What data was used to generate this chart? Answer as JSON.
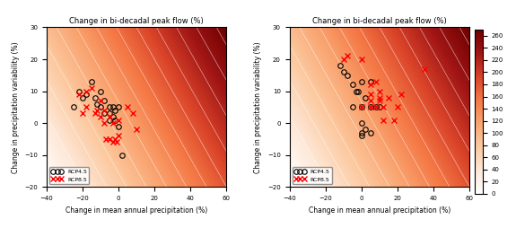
{
  "title": "Change in bi-decadal peak flow (%)",
  "xlabel": "Change in mean annual precipitation (%)",
  "ylabel": "Change in precipitation variability (%)",
  "xlim": [
    -40,
    60
  ],
  "ylim": [
    -20,
    30
  ],
  "xticks": [
    -40,
    -20,
    0,
    20,
    40,
    60
  ],
  "yticks": [
    -20,
    -10,
    0,
    10,
    20,
    30
  ],
  "colorbar_ticks": [
    0,
    20,
    40,
    60,
    80,
    100,
    120,
    140,
    160,
    180,
    200,
    220,
    240,
    260
  ],
  "panel1_rcp45": [
    [
      -22,
      10
    ],
    [
      -20,
      8
    ],
    [
      -18,
      9
    ],
    [
      -15,
      13
    ],
    [
      -13,
      8
    ],
    [
      -12,
      6
    ],
    [
      -10,
      10
    ],
    [
      -10,
      5
    ],
    [
      -8,
      7
    ],
    [
      -8,
      3
    ],
    [
      -5,
      5
    ],
    [
      -5,
      3
    ],
    [
      -5,
      1
    ],
    [
      -3,
      5
    ],
    [
      -3,
      2
    ],
    [
      -2,
      4
    ],
    [
      -2,
      1
    ],
    [
      0,
      -1
    ],
    [
      0,
      5
    ],
    [
      2,
      -10
    ],
    [
      -25,
      5
    ]
  ],
  "panel1_rcp85": [
    [
      -22,
      9
    ],
    [
      -20,
      3
    ],
    [
      -18,
      10
    ],
    [
      -15,
      11
    ],
    [
      -13,
      3
    ],
    [
      -12,
      4
    ],
    [
      -10,
      7
    ],
    [
      -10,
      2
    ],
    [
      -8,
      4
    ],
    [
      -8,
      0
    ],
    [
      -7,
      -5
    ],
    [
      -5,
      -5
    ],
    [
      -5,
      2
    ],
    [
      -3,
      -6
    ],
    [
      -3,
      0
    ],
    [
      -2,
      -5
    ],
    [
      -1,
      -6
    ],
    [
      0,
      1
    ],
    [
      0,
      -4
    ],
    [
      5,
      5
    ],
    [
      8,
      3
    ],
    [
      10,
      -2
    ],
    [
      -18,
      5
    ]
  ],
  "panel2_rcp45": [
    [
      -12,
      18
    ],
    [
      -10,
      16
    ],
    [
      -8,
      15
    ],
    [
      -5,
      12
    ],
    [
      -5,
      5
    ],
    [
      -3,
      10
    ],
    [
      -2,
      10
    ],
    [
      0,
      13
    ],
    [
      0,
      0
    ],
    [
      0,
      -4
    ],
    [
      0,
      -3
    ],
    [
      2,
      8
    ],
    [
      2,
      -2
    ],
    [
      5,
      13
    ],
    [
      5,
      -3
    ],
    [
      5,
      5
    ],
    [
      8,
      5
    ],
    [
      10,
      5
    ],
    [
      0,
      5
    ]
  ],
  "panel2_rcp85": [
    [
      -10,
      20
    ],
    [
      -8,
      21
    ],
    [
      0,
      20
    ],
    [
      5,
      12
    ],
    [
      5,
      9
    ],
    [
      5,
      7
    ],
    [
      8,
      13
    ],
    [
      10,
      10
    ],
    [
      10,
      8
    ],
    [
      10,
      7
    ],
    [
      12,
      5
    ],
    [
      15,
      8
    ],
    [
      20,
      5
    ],
    [
      22,
      9
    ],
    [
      0,
      5
    ],
    [
      35,
      17
    ],
    [
      18,
      1
    ],
    [
      12,
      1
    ],
    [
      8,
      5
    ],
    [
      5,
      5
    ]
  ]
}
